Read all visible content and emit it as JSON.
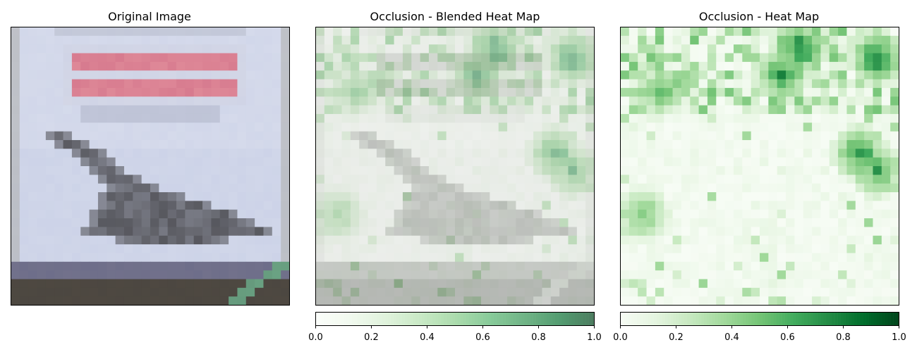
{
  "chart_data": [
    {
      "type": "heatmap",
      "title": "Original Image",
      "grid": false,
      "image": {
        "rows": 32,
        "cols": 32,
        "description_colors": {
          "sky": "#c9d0e6",
          "sign_red": "#d77b8f",
          "airplane": "#4a4a4f",
          "ground": "#4c4741",
          "strip": "#6e6e8a",
          "stripe": "#6aa383"
        }
      }
    },
    {
      "type": "heatmap",
      "title": "Occlusion - Blended Heat Map",
      "colorbar": {
        "min": 0.0,
        "max": 1.0,
        "ticks": [
          "0.0",
          "0.2",
          "0.4",
          "0.6",
          "0.8",
          "1.0"
        ],
        "colormap": "Greens",
        "alpha": 0.5
      }
    },
    {
      "type": "heatmap",
      "title": "Occlusion - Heat Map",
      "colorbar": {
        "min": 0.0,
        "max": 1.0,
        "ticks": [
          "0.0",
          "0.2",
          "0.4",
          "0.6",
          "0.8",
          "1.0"
        ],
        "colormap": "Greens"
      },
      "hotspots": [
        {
          "row": 2,
          "col": 20,
          "value": 0.95
        },
        {
          "row": 3,
          "col": 29,
          "value": 0.95
        },
        {
          "row": 5,
          "col": 18,
          "value": 0.85
        },
        {
          "row": 14,
          "col": 27,
          "value": 0.85
        },
        {
          "row": 7,
          "col": 4,
          "value": 0.6
        },
        {
          "row": 16,
          "col": 29,
          "value": 0.75
        },
        {
          "row": 21,
          "col": 2,
          "value": 0.6
        },
        {
          "row": 23,
          "col": 16,
          "value": 0.5
        }
      ]
    }
  ]
}
